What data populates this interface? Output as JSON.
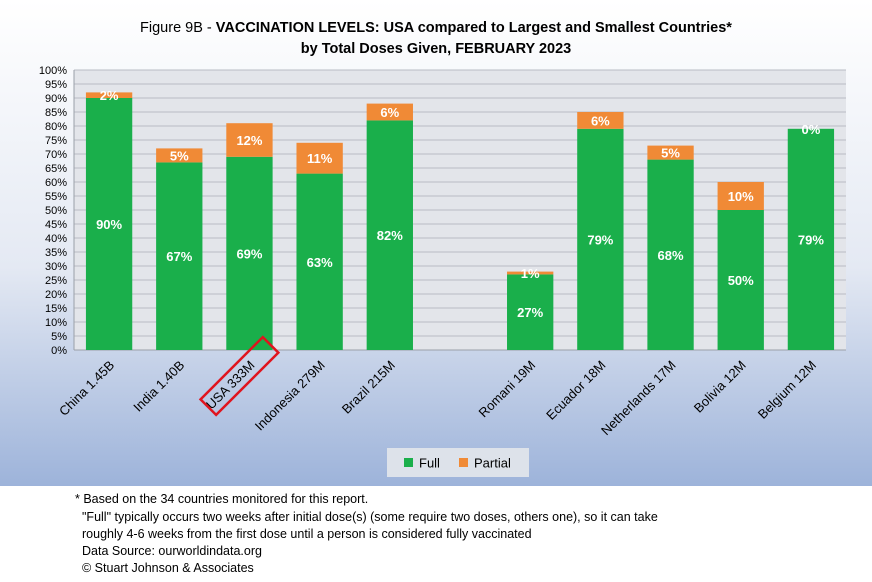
{
  "chart_data": {
    "type": "bar",
    "stacked": true,
    "title_prefix": "Figure 9B - ",
    "title_bold_line1": "VACCINATION LEVELS:  USA compared to Largest and Smallest Countries*",
    "title_line2": "by Total Doses Given, FEBRUARY 2023",
    "categories": [
      "China 1.45B",
      "India 1.40B",
      "USA 333M",
      "Indonesia 279M",
      "Brazil 215M",
      "",
      "Romani 19M",
      "Ecuador 18M",
      "Netherlands 17M",
      "Bolivia 12M",
      "Belgium 12M"
    ],
    "series": [
      {
        "name": "Full",
        "color": "#1aaf4b",
        "values": [
          90,
          67,
          69,
          63,
          82,
          null,
          27,
          79,
          68,
          50,
          79
        ],
        "labels": [
          "90%",
          "67%",
          "69%",
          "63%",
          "82%",
          "",
          "27%",
          "79%",
          "68%",
          "50%",
          "79%"
        ]
      },
      {
        "name": "Partial",
        "color": "#f08a36",
        "values": [
          2,
          5,
          12,
          11,
          6,
          null,
          1,
          6,
          5,
          10,
          0
        ],
        "labels": [
          "2%",
          "5%",
          "12%",
          "11%",
          "6%",
          "",
          "1%",
          "6%",
          "5%",
          "10%",
          "0%"
        ]
      }
    ],
    "ylim": [
      0,
      100
    ],
    "yticks": [
      "0%",
      "5%",
      "10%",
      "15%",
      "20%",
      "25%",
      "30%",
      "35%",
      "40%",
      "45%",
      "50%",
      "55%",
      "60%",
      "65%",
      "70%",
      "75%",
      "80%",
      "85%",
      "90%",
      "95%",
      "100%"
    ],
    "grid": true,
    "legend_position": "bottom",
    "highlight_category": "USA 333M",
    "highlight_color": "#e0141e"
  },
  "footnotes": {
    "asterisk": "* Based on the 34 countries monitored for this report.",
    "line1": "\"Full\" typically occurs two weeks after initial dose(s) (some require two doses, others one),  so it can take",
    "line2": "roughly 4-6 weeks from the first dose until a person is considered fully vaccinated",
    "source": "Data Source:  ourworldindata.org",
    "copyright": "© Stuart Johnson & Associates"
  }
}
